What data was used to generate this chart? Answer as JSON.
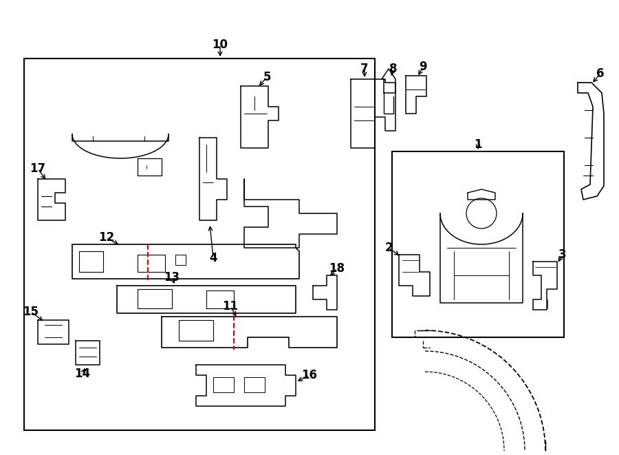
{
  "bg_color": "#ffffff",
  "line_color": "#000000",
  "red_color": "#cc0000",
  "fig_width": 9.0,
  "fig_height": 6.61,
  "font_size_labels": 12
}
